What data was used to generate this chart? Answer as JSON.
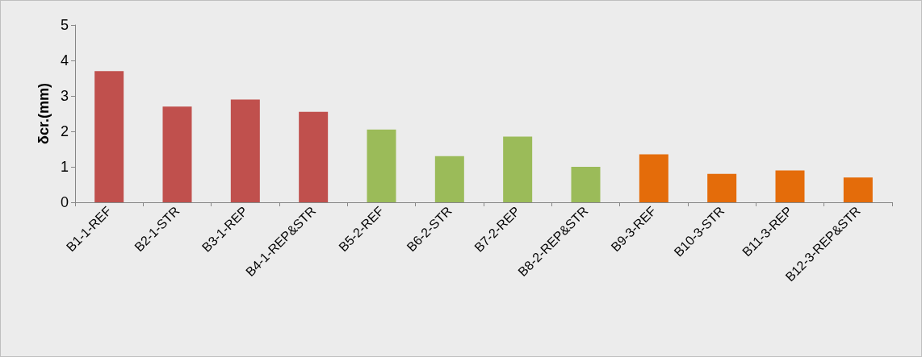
{
  "chart_data": {
    "type": "bar",
    "ylabel": "δcr.(mm)",
    "categories": [
      "B1-1-REF",
      "B2-1-STR",
      "B3-1-REP",
      "B4-1-REP&STR",
      "B5-2-REF",
      "B6-2-STR",
      "B7-2-REP",
      "B8-2-REP&STR",
      "B9-3-REF",
      "B10-3-STR",
      "B11-3-REP",
      "B12-3-REP&STR"
    ],
    "values": [
      3.7,
      2.7,
      2.9,
      2.55,
      2.05,
      1.3,
      1.85,
      1.0,
      1.35,
      0.8,
      0.9,
      0.7
    ],
    "colors": [
      "#c0504d",
      "#c0504d",
      "#c0504d",
      "#c0504d",
      "#9bbb59",
      "#9bbb59",
      "#9bbb59",
      "#9bbb59",
      "#e46c0a",
      "#e46c0a",
      "#e46c0a",
      "#e46c0a"
    ],
    "ylim": [
      0,
      5
    ],
    "yticks": [
      0,
      1,
      2,
      3,
      4,
      5
    ],
    "grid": false
  }
}
